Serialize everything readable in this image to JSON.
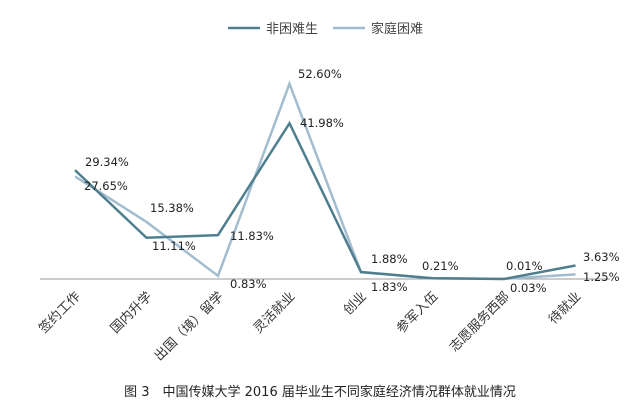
{
  "chart_data": {
    "type": "line",
    "title": "",
    "caption": "图 3　中国传媒大学 2016 届毕业生不同家庭经济情况群体就业情况",
    "categories": [
      "签约工作",
      "国内升学",
      "出国（境）留学",
      "灵活就业",
      "创业",
      "参军入伍",
      "志愿服务西部",
      "待就业"
    ],
    "series": [
      {
        "name": "非困难生",
        "color": "#4f7f8f",
        "values": [
          29.34,
          11.11,
          11.83,
          41.98,
          1.88,
          0.21,
          0.01,
          3.63
        ],
        "labels": [
          "29.34%",
          "11.11%",
          "11.83%",
          "41.98%",
          "1.88%",
          "0.21%",
          "0.01%",
          "3.63%"
        ]
      },
      {
        "name": "家庭困难",
        "color": "#a3bdd0",
        "values": [
          27.65,
          15.38,
          0.83,
          52.6,
          1.83,
          0.21,
          0.03,
          1.25
        ],
        "labels": [
          "27.65%",
          "15.38%",
          "0.83%",
          "52.60%",
          "1.83%",
          "",
          "0.03%",
          "1.25%"
        ]
      }
    ],
    "ylim": [
      0,
      55
    ],
    "grid": false,
    "legend": "top"
  }
}
